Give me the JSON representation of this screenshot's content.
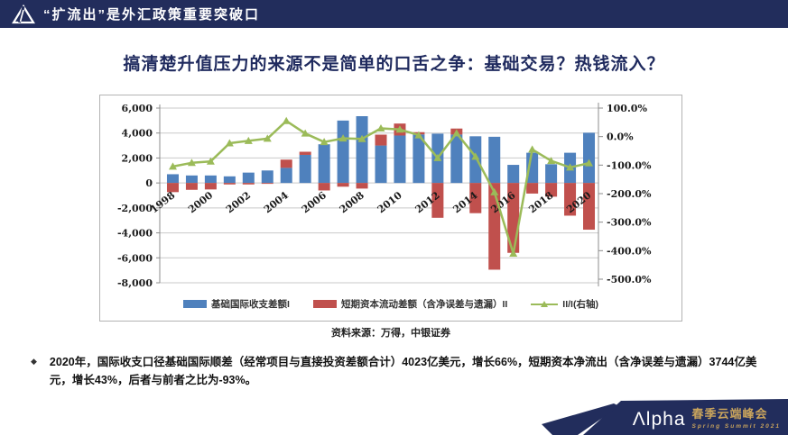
{
  "header": {
    "title": "“扩流出”是外汇政策重要突破口"
  },
  "slide": {
    "title": "搞清楚升值压力的来源不是简单的口舌之争：基础交易？热钱流入？",
    "source_note": "资料来源：万得，中银证券",
    "bullet": {
      "marker": "◆",
      "text": "2020年，国际收支口径基础国际顺差（经常项目与直接投资差额合计）4023亿美元，增长66%，短期资本净流出（含净误差与遗漏）3744亿美元，增长43%，后者与前者之比为-93%。"
    }
  },
  "footer": {
    "logo_text": "Λlpha",
    "event_cn": "春季云端峰会",
    "event_en": "Spring Summit 2021"
  },
  "colors": {
    "navy": "#222d5c",
    "bar_blue": "#4f81bd",
    "bar_red": "#c0504d",
    "line_green": "#9bbb59",
    "gold": "#c9a45c",
    "grid": "#c9c9c9",
    "axis": "#8c8c8c"
  },
  "chart_data": {
    "type": "combo: stacked bar + line (secondary axis)",
    "categories": [
      "1998",
      "1999",
      "2000",
      "2001",
      "2002",
      "2003",
      "2004",
      "2005",
      "2006",
      "2007",
      "2008",
      "2009",
      "2010",
      "2011",
      "2012",
      "2013",
      "2014",
      "2015",
      "2016",
      "2017",
      "2018",
      "2019",
      "2020"
    ],
    "x_tick_labels": [
      "1998",
      "2000",
      "2002",
      "2004",
      "2006",
      "2008",
      "2010",
      "2012",
      "2014",
      "2016",
      "2018",
      "2020"
    ],
    "series": [
      {
        "name": "基础国际收支差额I",
        "axis": "left",
        "color": "#4f81bd",
        "values": [
          700,
          600,
          600,
          530,
          830,
          1000,
          1210,
          2250,
          3100,
          5000,
          5350,
          3000,
          3800,
          3890,
          3950,
          3880,
          3740,
          3700,
          1450,
          2420,
          1500,
          2420,
          4023
        ]
      },
      {
        "name": "短期资本流动差额（含净误差与遗漏）II",
        "axis": "left",
        "color": "#c0504d",
        "values": [
          -735,
          -550,
          -520,
          -120,
          -120,
          -70,
          660,
          250,
          -600,
          -300,
          -450,
          870,
          960,
          180,
          -2790,
          480,
          -2420,
          -6950,
          -5600,
          -850,
          -1100,
          -2620,
          -3744
        ]
      },
      {
        "name": "II/I(右轴)",
        "axis": "right",
        "color": "#9bbb59",
        "values": [
          -105,
          -92,
          -87,
          -23,
          -15,
          -7,
          55,
          11,
          -19,
          -6,
          -8,
          29,
          25,
          5,
          -75,
          12,
          -70,
          -195,
          -410,
          -45,
          -85,
          -108,
          -93
        ]
      }
    ],
    "y_left": {
      "ticks": [
        6000,
        4000,
        2000,
        0,
        -2000,
        -4000,
        -6000,
        -8000
      ],
      "labels": [
        "6,000",
        "4,000",
        "2,000",
        "0",
        "-2,000",
        "-4,000",
        "-6,000",
        "-8,000"
      ],
      "range": [
        -8000,
        6000
      ]
    },
    "y_right": {
      "ticks": [
        100,
        0,
        -100,
        -200,
        -300,
        -400,
        -500
      ],
      "labels": [
        "100.0%",
        "0.0%",
        "-100.0%",
        "-200.0%",
        "-300.0%",
        "-400.0%",
        "-500.0%"
      ],
      "range": [
        -500,
        100
      ]
    },
    "title": "",
    "xlabel": "",
    "ylabel": "",
    "grid": "horizontal",
    "legend_position": "bottom"
  }
}
